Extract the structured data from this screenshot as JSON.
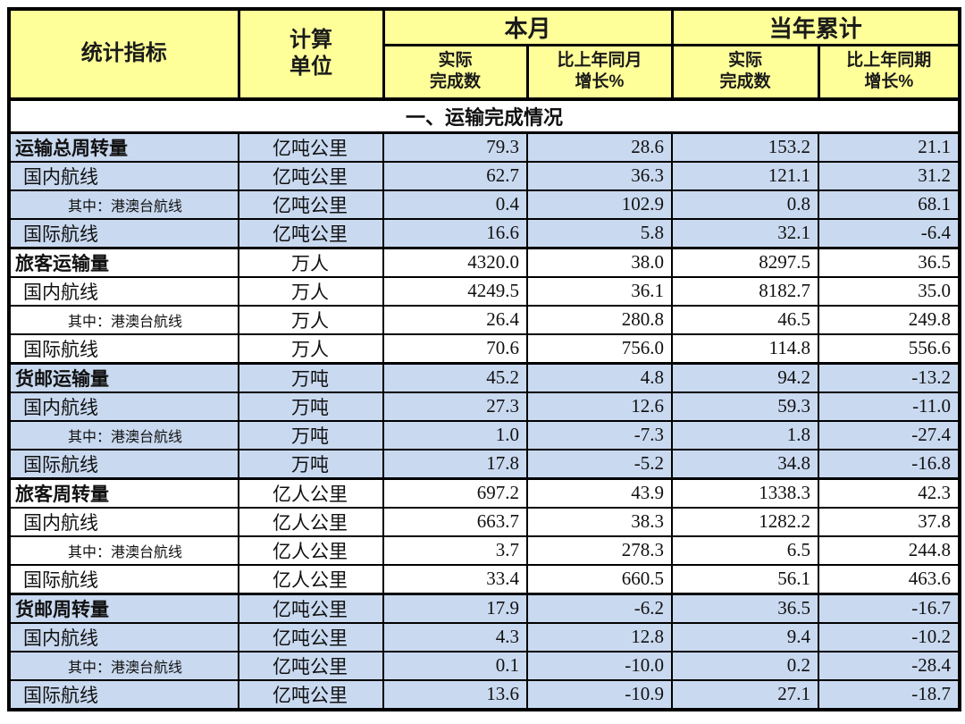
{
  "colors": {
    "header_bg": "#ffff99",
    "row_blue": "#c9d9f0",
    "row_white": "#ffffff",
    "border": "#000000"
  },
  "table": {
    "headers": {
      "indicator": "统计指标",
      "unit": "计算\n单位",
      "month": "本月",
      "ytd": "当年累计",
      "sub": [
        "实际\n完成数",
        "比上年同月\n增长%",
        "实际\n完成数",
        "比上年同期\n增长%"
      ]
    },
    "section_title": "一、运输完成情况",
    "groups": [
      {
        "shade": "blue",
        "rows": [
          {
            "label": "运输总周转量",
            "style": "head",
            "unit": "亿吨公里",
            "values": [
              "79.3",
              "28.6",
              "153.2",
              "21.1"
            ]
          },
          {
            "label": "国内航线",
            "style": "sub",
            "unit": "亿吨公里",
            "values": [
              "62.7",
              "36.3",
              "121.1",
              "31.2"
            ]
          },
          {
            "label": "其中：港澳台航线",
            "style": "sub2",
            "unit": "亿吨公里",
            "values": [
              "0.4",
              "102.9",
              "0.8",
              "68.1"
            ]
          },
          {
            "label": "国际航线",
            "style": "sub",
            "unit": "亿吨公里",
            "values": [
              "16.6",
              "5.8",
              "32.1",
              "-6.4"
            ]
          }
        ]
      },
      {
        "shade": "white",
        "rows": [
          {
            "label": "旅客运输量",
            "style": "head",
            "unit": "万人",
            "values": [
              "4320.0",
              "38.0",
              "8297.5",
              "36.5"
            ]
          },
          {
            "label": "国内航线",
            "style": "sub",
            "unit": "万人",
            "values": [
              "4249.5",
              "36.1",
              "8182.7",
              "35.0"
            ]
          },
          {
            "label": "其中：港澳台航线",
            "style": "sub2",
            "unit": "万人",
            "values": [
              "26.4",
              "280.8",
              "46.5",
              "249.8"
            ]
          },
          {
            "label": "国际航线",
            "style": "sub",
            "unit": "万人",
            "values": [
              "70.6",
              "756.0",
              "114.8",
              "556.6"
            ]
          }
        ]
      },
      {
        "shade": "blue",
        "rows": [
          {
            "label": "货邮运输量",
            "style": "head",
            "unit": "万吨",
            "values": [
              "45.2",
              "4.8",
              "94.2",
              "-13.2"
            ]
          },
          {
            "label": "国内航线",
            "style": "sub",
            "unit": "万吨",
            "values": [
              "27.3",
              "12.6",
              "59.3",
              "-11.0"
            ]
          },
          {
            "label": "其中：港澳台航线",
            "style": "sub2",
            "unit": "万吨",
            "values": [
              "1.0",
              "-7.3",
              "1.8",
              "-27.4"
            ]
          },
          {
            "label": "国际航线",
            "style": "sub",
            "unit": "万吨",
            "values": [
              "17.8",
              "-5.2",
              "34.8",
              "-16.8"
            ]
          }
        ]
      },
      {
        "shade": "white",
        "rows": [
          {
            "label": "旅客周转量",
            "style": "head",
            "unit": "亿人公里",
            "values": [
              "697.2",
              "43.9",
              "1338.3",
              "42.3"
            ]
          },
          {
            "label": "国内航线",
            "style": "sub",
            "unit": "亿人公里",
            "values": [
              "663.7",
              "38.3",
              "1282.2",
              "37.8"
            ]
          },
          {
            "label": "其中：港澳台航线",
            "style": "sub2",
            "unit": "亿人公里",
            "values": [
              "3.7",
              "278.3",
              "6.5",
              "244.8"
            ]
          },
          {
            "label": "国际航线",
            "style": "sub",
            "unit": "亿人公里",
            "values": [
              "33.4",
              "660.5",
              "56.1",
              "463.6"
            ]
          }
        ]
      },
      {
        "shade": "blue",
        "rows": [
          {
            "label": "货邮周转量",
            "style": "head",
            "unit": "亿吨公里",
            "values": [
              "17.9",
              "-6.2",
              "36.5",
              "-16.7"
            ]
          },
          {
            "label": "国内航线",
            "style": "sub",
            "unit": "亿吨公里",
            "values": [
              "4.3",
              "12.8",
              "9.4",
              "-10.2"
            ]
          },
          {
            "label": "其中：港澳台航线",
            "style": "sub2",
            "unit": "亿吨公里",
            "values": [
              "0.1",
              "-10.0",
              "0.2",
              "-28.4"
            ]
          },
          {
            "label": "国际航线",
            "style": "sub",
            "unit": "亿吨公里",
            "values": [
              "13.6",
              "-10.9",
              "27.1",
              "-18.7"
            ]
          }
        ]
      }
    ]
  }
}
